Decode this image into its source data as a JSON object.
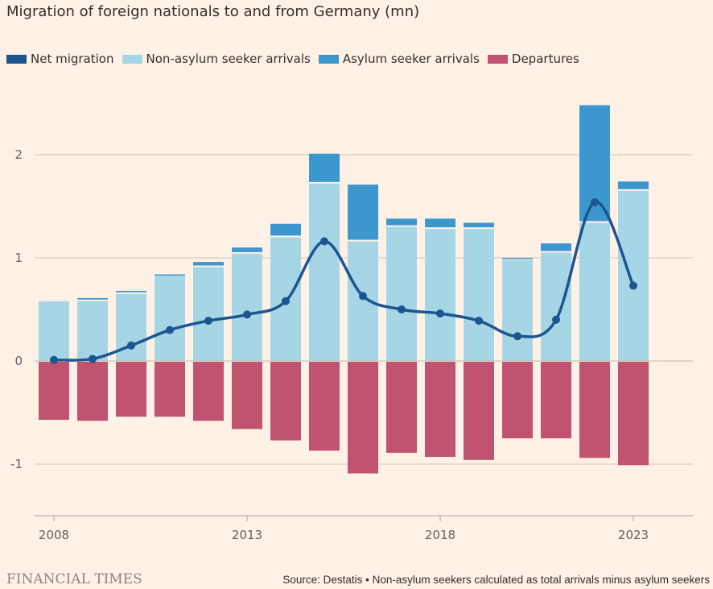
{
  "title": "Migration of foreign nationals to and from Germany (mn)",
  "legend": [
    {
      "label": "Net migration",
      "color": "#1d5590"
    },
    {
      "label": "Non-asylum seeker arrivals",
      "color": "#a6d6e6"
    },
    {
      "label": "Asylum seeker arrivals",
      "color": "#3d97cf"
    },
    {
      "label": "Departures",
      "color": "#c0536f"
    }
  ],
  "footer": {
    "logo": "FINANCIAL TIMES",
    "source": "Source: Destatis • Non-asylum seekers calculated as total arrivals minus asylum seekers"
  },
  "chart_data": {
    "type": "bar",
    "title": "Migration of foreign nationals to and from Germany (mn)",
    "xlabel": "",
    "ylabel": "",
    "ylim": [
      -1.5,
      2.5
    ],
    "yticks": [
      -1,
      0,
      1,
      2
    ],
    "ytick_labels": [
      "-1",
      "0",
      "1",
      "2"
    ],
    "xticks": [
      2008,
      2013,
      2018,
      2023
    ],
    "xtick_labels": [
      "2008",
      "2013",
      "2018",
      "2023"
    ],
    "grid": true,
    "legend_position": "top-left",
    "categories": [
      2008,
      2009,
      2010,
      2011,
      2012,
      2013,
      2014,
      2015,
      2016,
      2017,
      2018,
      2019,
      2020,
      2021,
      2022,
      2023
    ],
    "series": [
      {
        "name": "Non-asylum seeker arrivals",
        "type": "stacked-bar",
        "color": "#a6d6e6",
        "values": [
          0.58,
          0.58,
          0.65,
          0.83,
          0.91,
          1.04,
          1.2,
          1.72,
          1.16,
          1.3,
          1.28,
          1.28,
          0.98,
          1.05,
          1.34,
          1.65
        ]
      },
      {
        "name": "Asylum seeker arrivals",
        "type": "stacked-bar",
        "color": "#3d97cf",
        "values": [
          0.0,
          0.03,
          0.03,
          0.01,
          0.05,
          0.06,
          0.13,
          0.29,
          0.55,
          0.08,
          0.1,
          0.06,
          0.02,
          0.09,
          1.14,
          0.09
        ]
      },
      {
        "name": "Departures",
        "type": "bar",
        "color": "#c0536f",
        "values": [
          -0.57,
          -0.58,
          -0.54,
          -0.54,
          -0.58,
          -0.66,
          -0.77,
          -0.87,
          -1.09,
          -0.89,
          -0.93,
          -0.96,
          -0.75,
          -0.75,
          -0.94,
          -1.01
        ]
      },
      {
        "name": "Net migration",
        "type": "line",
        "color": "#1d5590",
        "values": [
          0.01,
          0.02,
          0.15,
          0.3,
          0.39,
          0.45,
          0.58,
          1.16,
          0.63,
          0.5,
          0.46,
          0.39,
          0.24,
          0.4,
          1.54,
          0.73
        ]
      }
    ]
  }
}
